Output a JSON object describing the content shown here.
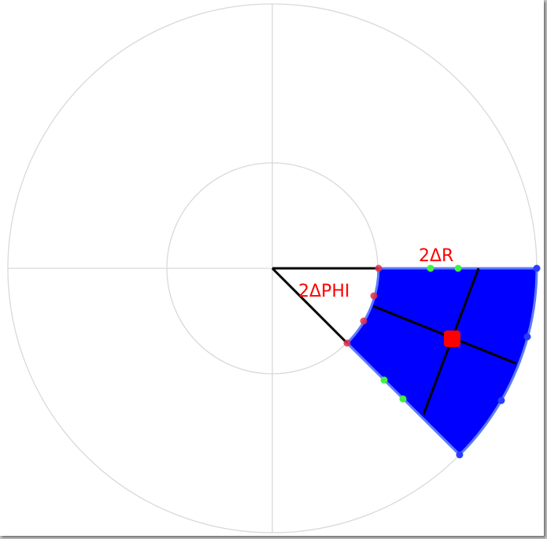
{
  "labels": {
    "delta_r": "2ΔR",
    "delta_phi": "2ΔPHI"
  },
  "colors": {
    "background": "#ffffff",
    "grid": "#d9d9d9",
    "sector_fill": "#0000ff",
    "sector_outline": "#5a7aff",
    "axis_line": "#000000",
    "inner_vertex": "#e0304a",
    "outer_vertex": "#2a3cff",
    "radial_midpoint": "#44ee44",
    "center_marker": "#ff0000",
    "label": "#ff0000"
  }
}
